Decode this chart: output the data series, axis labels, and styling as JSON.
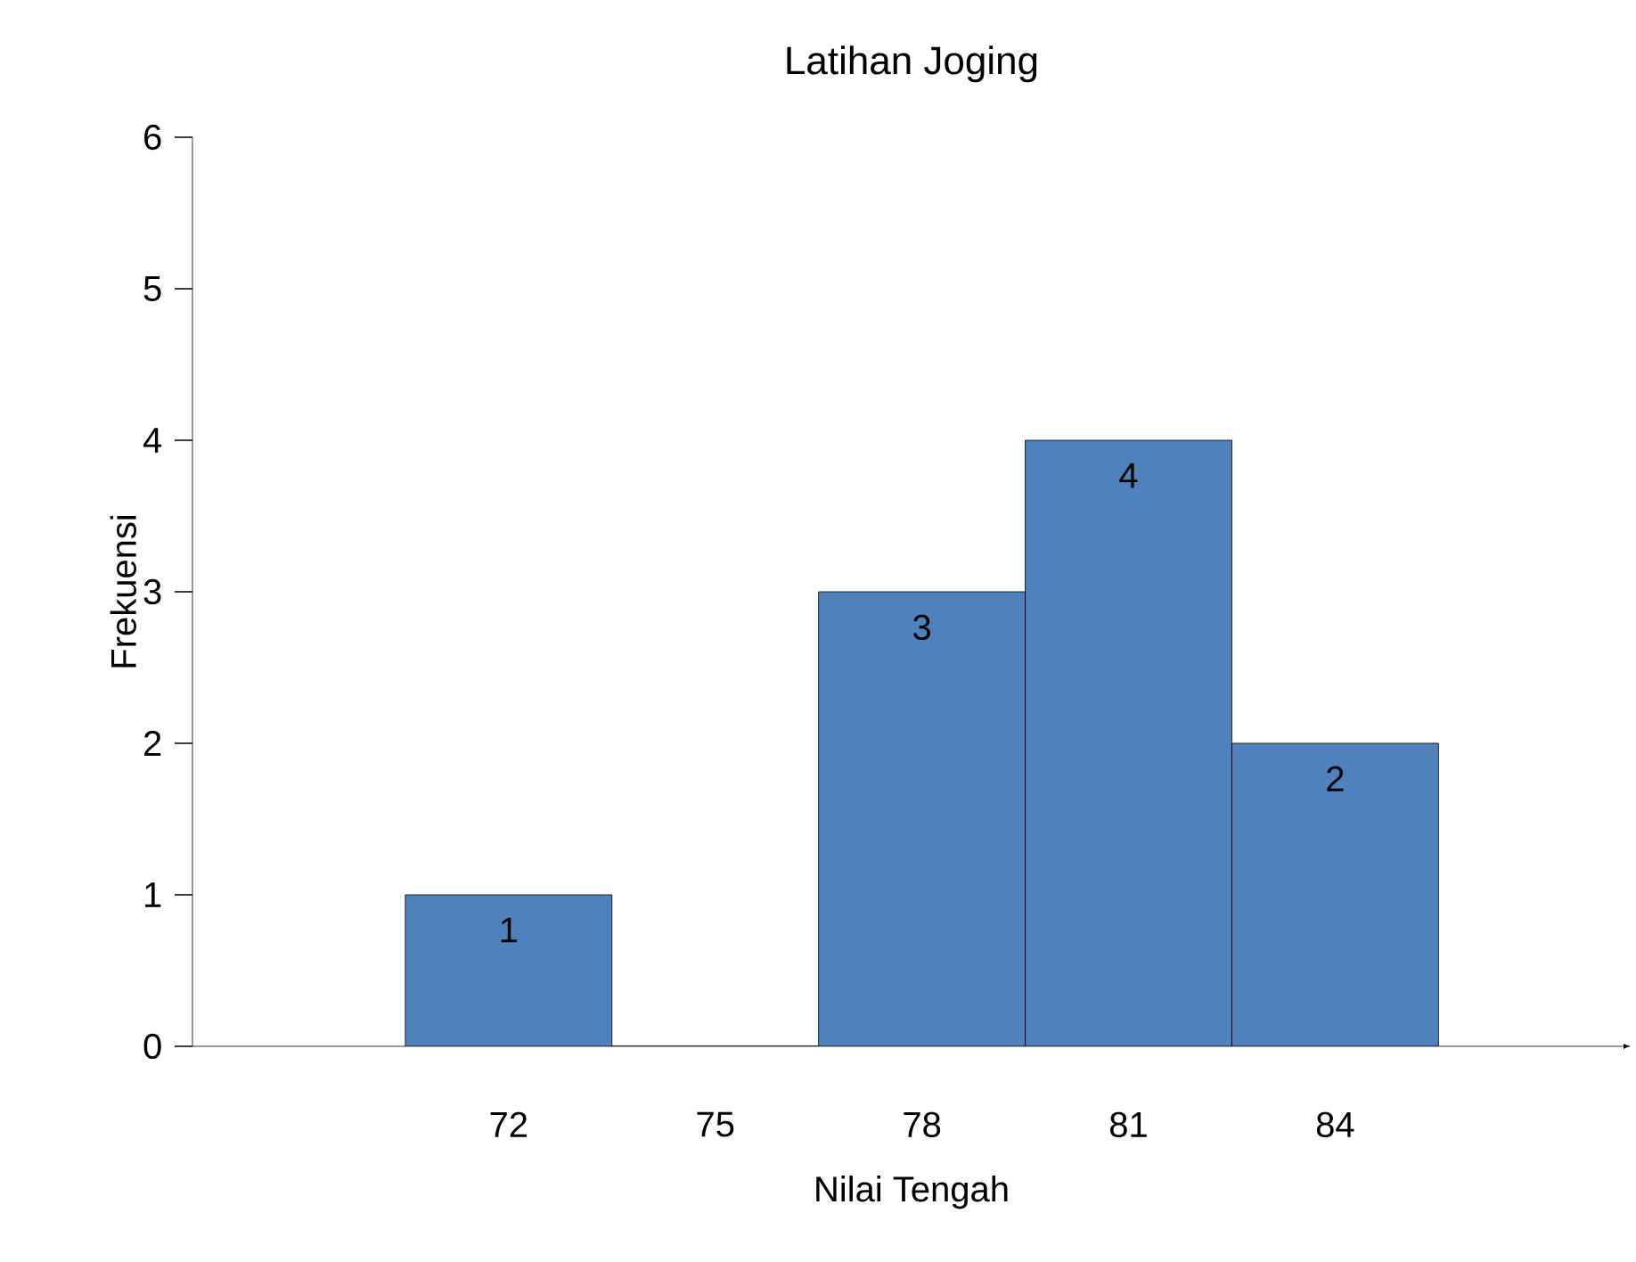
{
  "chart_data": {
    "type": "bar",
    "title": "Latihan Joging",
    "xlabel": "Nilai Tengah",
    "ylabel": "Frekuensi",
    "categories": [
      "72",
      "75",
      "78",
      "81",
      "84"
    ],
    "values": [
      1,
      0,
      3,
      4,
      2
    ],
    "value_labels": [
      "1",
      null,
      "3",
      "4",
      "2"
    ],
    "color": "#4f81bd",
    "ylim": [
      0,
      6
    ],
    "yticks": [
      0,
      1,
      2,
      3,
      4,
      5,
      6
    ],
    "grid": false
  }
}
